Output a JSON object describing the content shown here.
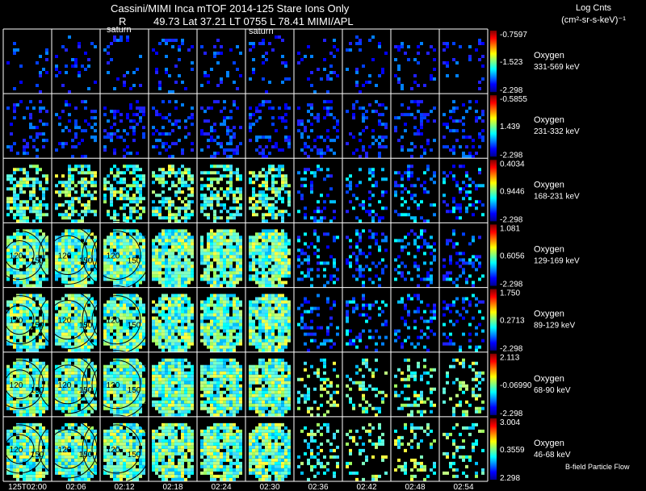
{
  "header": {
    "line1": "Cassini/MIMI Inca mTOF  2014-125   Stare   Ions Only",
    "line2_r": "R",
    "line2_rest": "49.73 Lat 37.21 LT 0755 L        78.41  MIMI/APL",
    "units_title": "Log Cnts",
    "units_formula": "(cm²-sr-s-keV)⁻¹"
  },
  "planet_labels": [
    "saturn",
    "saturn"
  ],
  "colors": {
    "background": "#000000",
    "grid": "#ffffff",
    "colorbar": [
      "#00008f",
      "#0000ff",
      "#0080ff",
      "#00ffff",
      "#80ff80",
      "#ffff00",
      "#ff8000",
      "#ff0000",
      "#800000"
    ]
  },
  "chart_data": {
    "type": "heatmap",
    "species": "Oxygen",
    "times": [
      "125T02:00",
      "02:06",
      "02:12",
      "02:18",
      "02:24",
      "02:30",
      "02:36",
      "02:42",
      "02:48",
      "02:54"
    ],
    "rows": [
      {
        "species": "Oxygen",
        "energy": "331-569 keV",
        "cb_max": "-0.7597",
        "cb_mid": "-1.523",
        "cb_min": "-2.298"
      },
      {
        "species": "Oxygen",
        "energy": "231-332 keV",
        "cb_max": "-0.5855",
        "cb_mid": "1.439",
        "cb_min": "-2.298"
      },
      {
        "species": "Oxygen",
        "energy": "168-231 keV",
        "cb_max": "0.4034",
        "cb_mid": "0.9446",
        "cb_min": "-2.298"
      },
      {
        "species": "Oxygen",
        "energy": "129-169 keV",
        "cb_max": "1.081",
        "cb_mid": "0.6056",
        "cb_min": "-2.298"
      },
      {
        "species": "Oxygen",
        "energy": "89-129 keV",
        "cb_max": "1.750",
        "cb_mid": "0.2713",
        "cb_min": "-2.298"
      },
      {
        "species": "Oxygen",
        "energy": "68-90 keV",
        "cb_max": "2.113",
        "cb_mid": "-0.06990",
        "cb_min": "-2.298"
      },
      {
        "species": "Oxygen",
        "energy": "46-68 keV",
        "cb_max": "3.004",
        "cb_mid": "0.3559",
        "cb_min": "2.298"
      }
    ],
    "contour_labels": [
      "120",
      "150"
    ],
    "legend_note": "B-field Particle Flow"
  }
}
